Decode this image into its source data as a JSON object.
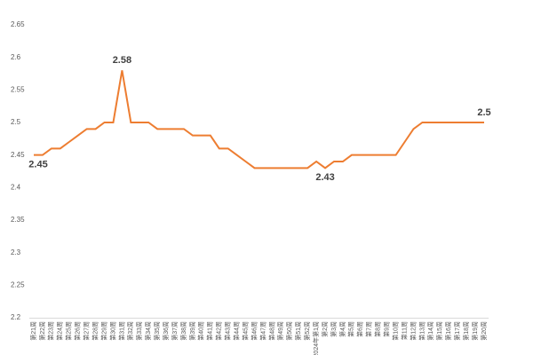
{
  "chart_data": {
    "type": "line",
    "categories": [
      "第21周",
      "第22周",
      "第23周",
      "第24周",
      "第25周",
      "第26周",
      "第27周",
      "第28周",
      "第29周",
      "第30周",
      "第31周",
      "第32周",
      "第33周",
      "第34周",
      "第35周",
      "第36周",
      "第37周",
      "第38周",
      "第39周",
      "第40周",
      "第41周",
      "第42周",
      "第43周",
      "第44周",
      "第45周",
      "第46周",
      "第47周",
      "第48周",
      "第49周",
      "第50周",
      "第51周",
      "第52周",
      "2024年第1周",
      "第2周",
      "第3周",
      "第4周",
      "第5周",
      "第6周",
      "第7周",
      "第8周",
      "第9周",
      "第10周",
      "第11周",
      "第12周",
      "第13周",
      "第14周",
      "第15周",
      "第16周",
      "第17周",
      "第18周",
      "第19周",
      "第20周"
    ],
    "series": [
      {
        "color": "#ED7D31",
        "values": [
          2.45,
          2.45,
          2.46,
          2.46,
          2.47,
          2.48,
          2.49,
          2.49,
          2.5,
          2.5,
          2.58,
          2.5,
          2.5,
          2.5,
          2.49,
          2.49,
          2.49,
          2.49,
          2.48,
          2.48,
          2.48,
          2.46,
          2.46,
          2.45,
          2.44,
          2.43,
          2.43,
          2.43,
          2.43,
          2.43,
          2.43,
          2.43,
          2.44,
          2.43,
          2.44,
          2.44,
          2.45,
          2.45,
          2.45,
          2.45,
          2.45,
          2.45,
          2.47,
          2.49,
          2.5,
          2.5,
          2.5,
          2.5,
          2.5,
          2.5,
          2.5,
          2.5
        ],
        "value_labels": [
          "2.45",
          null,
          null,
          null,
          null,
          null,
          null,
          null,
          null,
          null,
          "2.58",
          null,
          null,
          null,
          null,
          null,
          null,
          null,
          null,
          null,
          null,
          null,
          null,
          null,
          null,
          null,
          null,
          null,
          null,
          null,
          null,
          null,
          null,
          "2.43",
          null,
          null,
          null,
          null,
          null,
          null,
          null,
          null,
          null,
          null,
          null,
          null,
          null,
          null,
          null,
          null,
          null,
          "2.5"
        ]
      }
    ],
    "ylim": [
      2.2,
      2.65
    ],
    "yticks": [
      2.2,
      2.25,
      2.3,
      2.35,
      2.4,
      2.45,
      2.5,
      2.55,
      2.6,
      2.65
    ],
    "grid": false
  }
}
